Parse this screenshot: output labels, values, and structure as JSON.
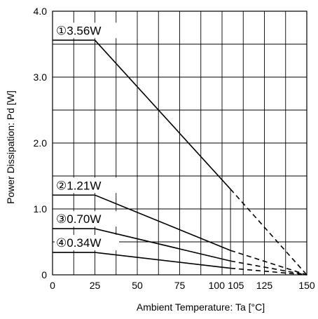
{
  "chart_data": {
    "type": "line",
    "xlabel": "Ambient Temperature: Ta [°C]",
    "ylabel": "Power Dissipation: Pd [W]",
    "xlim": [
      0,
      150
    ],
    "ylim": [
      0,
      4.0
    ],
    "grid": true,
    "x_ticks": [
      0,
      25,
      50,
      75,
      100,
      105,
      125,
      150
    ],
    "x_tick_labels": [
      "0",
      "25",
      "50",
      "75",
      "100",
      "105",
      "125",
      "150"
    ],
    "y_ticks": [
      0,
      1.0,
      2.0,
      3.0,
      4.0
    ],
    "y_tick_labels": [
      "0",
      "1.0",
      "2.0",
      "3.0",
      "4.0"
    ],
    "series": [
      {
        "name": "①3.56W",
        "points": [
          [
            0,
            3.56
          ],
          [
            25,
            3.56
          ],
          [
            105,
            1.3
          ],
          [
            150,
            0
          ]
        ],
        "solid_until": 105
      },
      {
        "name": "②1.21W",
        "points": [
          [
            0,
            1.21
          ],
          [
            25,
            1.21
          ],
          [
            105,
            0.37
          ],
          [
            150,
            0
          ]
        ],
        "solid_until": 105
      },
      {
        "name": "③0.70W",
        "points": [
          [
            0,
            0.7
          ],
          [
            25,
            0.7
          ],
          [
            105,
            0.21
          ],
          [
            150,
            0
          ]
        ],
        "solid_until": 105
      },
      {
        "name": "④0.34W",
        "points": [
          [
            0,
            0.34
          ],
          [
            25,
            0.34
          ],
          [
            105,
            0.1
          ],
          [
            150,
            0
          ]
        ],
        "solid_until": 105
      }
    ]
  }
}
